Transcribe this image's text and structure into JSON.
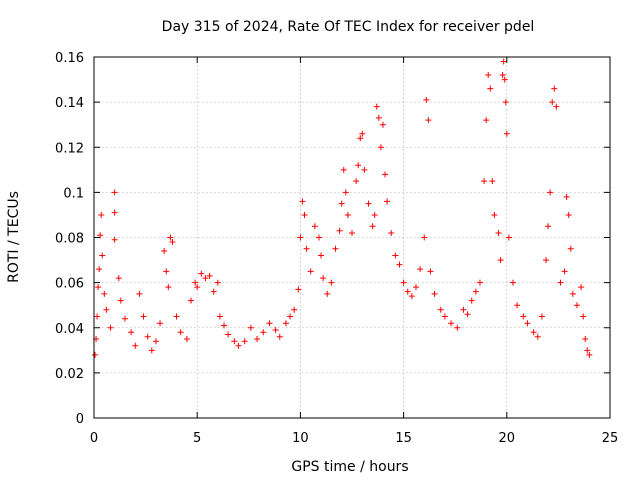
{
  "chart_data": {
    "type": "scatter",
    "title": "Day 315 of 2024, Rate Of TEC Index for receiver pdel",
    "xlabel": "GPS time / hours",
    "ylabel": "ROTI / TECUs",
    "xlim": [
      0,
      25
    ],
    "ylim": [
      0,
      0.16
    ],
    "x_ticks": [
      0,
      5,
      10,
      15,
      20,
      25
    ],
    "x_tick_labels": [
      "0",
      "5",
      "10",
      "15",
      "20",
      "25"
    ],
    "y_ticks": [
      0,
      0.02,
      0.04,
      0.06,
      0.08,
      0.1,
      0.12,
      0.14,
      0.16
    ],
    "y_tick_labels": [
      "0",
      "0.02",
      "0.04",
      "0.06",
      "0.08",
      "0.1",
      "0.12",
      "0.14",
      "0.16"
    ],
    "grid": true,
    "marker": "+",
    "marker_color": "#ff0000",
    "series": [
      {
        "name": "ROTI",
        "points": [
          [
            0.05,
            0.028
          ],
          [
            0.1,
            0.035
          ],
          [
            0.15,
            0.045
          ],
          [
            0.2,
            0.058
          ],
          [
            0.25,
            0.066
          ],
          [
            0.3,
            0.081
          ],
          [
            0.35,
            0.09
          ],
          [
            0.4,
            0.072
          ],
          [
            0.5,
            0.055
          ],
          [
            0.6,
            0.048
          ],
          [
            0.8,
            0.04
          ],
          [
            1.0,
            0.1
          ],
          [
            1.0,
            0.091
          ],
          [
            1.0,
            0.079
          ],
          [
            1.2,
            0.062
          ],
          [
            1.3,
            0.052
          ],
          [
            1.5,
            0.044
          ],
          [
            1.8,
            0.038
          ],
          [
            2.0,
            0.032
          ],
          [
            2.2,
            0.055
          ],
          [
            2.4,
            0.045
          ],
          [
            2.6,
            0.036
          ],
          [
            2.8,
            0.03
          ],
          [
            3.0,
            0.034
          ],
          [
            3.2,
            0.042
          ],
          [
            3.4,
            0.074
          ],
          [
            3.5,
            0.065
          ],
          [
            3.6,
            0.058
          ],
          [
            3.7,
            0.08
          ],
          [
            3.8,
            0.078
          ],
          [
            4.0,
            0.045
          ],
          [
            4.2,
            0.038
          ],
          [
            4.5,
            0.035
          ],
          [
            4.7,
            0.052
          ],
          [
            4.9,
            0.06
          ],
          [
            5.0,
            0.058
          ],
          [
            5.2,
            0.064
          ],
          [
            5.4,
            0.062
          ],
          [
            5.6,
            0.063
          ],
          [
            5.8,
            0.056
          ],
          [
            6.0,
            0.06
          ],
          [
            6.1,
            0.045
          ],
          [
            6.3,
            0.041
          ],
          [
            6.5,
            0.037
          ],
          [
            6.8,
            0.034
          ],
          [
            7.0,
            0.032
          ],
          [
            7.3,
            0.034
          ],
          [
            7.6,
            0.04
          ],
          [
            7.9,
            0.035
          ],
          [
            8.2,
            0.038
          ],
          [
            8.5,
            0.042
          ],
          [
            8.8,
            0.039
          ],
          [
            9.0,
            0.036
          ],
          [
            9.3,
            0.042
          ],
          [
            9.5,
            0.045
          ],
          [
            9.7,
            0.048
          ],
          [
            9.9,
            0.057
          ],
          [
            10.0,
            0.08
          ],
          [
            10.1,
            0.096
          ],
          [
            10.2,
            0.09
          ],
          [
            10.3,
            0.075
          ],
          [
            10.5,
            0.065
          ],
          [
            10.7,
            0.085
          ],
          [
            10.9,
            0.08
          ],
          [
            11.0,
            0.072
          ],
          [
            11.1,
            0.062
          ],
          [
            11.3,
            0.055
          ],
          [
            11.5,
            0.06
          ],
          [
            11.7,
            0.075
          ],
          [
            11.9,
            0.083
          ],
          [
            12.0,
            0.095
          ],
          [
            12.1,
            0.11
          ],
          [
            12.2,
            0.1
          ],
          [
            12.3,
            0.09
          ],
          [
            12.5,
            0.082
          ],
          [
            12.7,
            0.105
          ],
          [
            12.8,
            0.112
          ],
          [
            12.9,
            0.124
          ],
          [
            13.0,
            0.126
          ],
          [
            13.1,
            0.11
          ],
          [
            13.3,
            0.095
          ],
          [
            13.5,
            0.085
          ],
          [
            13.6,
            0.09
          ],
          [
            13.7,
            0.138
          ],
          [
            13.8,
            0.133
          ],
          [
            13.9,
            0.12
          ],
          [
            14.0,
            0.13
          ],
          [
            14.1,
            0.108
          ],
          [
            14.2,
            0.096
          ],
          [
            14.4,
            0.082
          ],
          [
            14.6,
            0.072
          ],
          [
            14.8,
            0.068
          ],
          [
            15.0,
            0.06
          ],
          [
            15.2,
            0.056
          ],
          [
            15.4,
            0.054
          ],
          [
            15.6,
            0.058
          ],
          [
            15.8,
            0.066
          ],
          [
            16.0,
            0.08
          ],
          [
            16.1,
            0.141
          ],
          [
            16.2,
            0.132
          ],
          [
            16.3,
            0.065
          ],
          [
            16.5,
            0.055
          ],
          [
            16.8,
            0.048
          ],
          [
            17.0,
            0.045
          ],
          [
            17.3,
            0.042
          ],
          [
            17.6,
            0.04
          ],
          [
            17.9,
            0.048
          ],
          [
            18.1,
            0.046
          ],
          [
            18.3,
            0.052
          ],
          [
            18.5,
            0.056
          ],
          [
            18.7,
            0.06
          ],
          [
            18.9,
            0.105
          ],
          [
            19.0,
            0.132
          ],
          [
            19.1,
            0.152
          ],
          [
            19.2,
            0.146
          ],
          [
            19.3,
            0.105
          ],
          [
            19.4,
            0.09
          ],
          [
            19.6,
            0.082
          ],
          [
            19.7,
            0.07
          ],
          [
            19.8,
            0.152
          ],
          [
            19.85,
            0.158
          ],
          [
            19.9,
            0.15
          ],
          [
            19.95,
            0.14
          ],
          [
            20.0,
            0.126
          ],
          [
            20.1,
            0.08
          ],
          [
            20.3,
            0.06
          ],
          [
            20.5,
            0.05
          ],
          [
            20.8,
            0.045
          ],
          [
            21.0,
            0.042
          ],
          [
            21.3,
            0.038
          ],
          [
            21.5,
            0.036
          ],
          [
            21.7,
            0.045
          ],
          [
            21.9,
            0.07
          ],
          [
            22.0,
            0.085
          ],
          [
            22.1,
            0.1
          ],
          [
            22.2,
            0.14
          ],
          [
            22.3,
            0.146
          ],
          [
            22.4,
            0.138
          ],
          [
            22.6,
            0.06
          ],
          [
            22.8,
            0.065
          ],
          [
            22.9,
            0.098
          ],
          [
            23.0,
            0.09
          ],
          [
            23.1,
            0.075
          ],
          [
            23.2,
            0.055
          ],
          [
            23.4,
            0.05
          ],
          [
            23.6,
            0.058
          ],
          [
            23.7,
            0.045
          ],
          [
            23.8,
            0.035
          ],
          [
            23.9,
            0.03
          ],
          [
            24.0,
            0.028
          ]
        ]
      }
    ]
  }
}
